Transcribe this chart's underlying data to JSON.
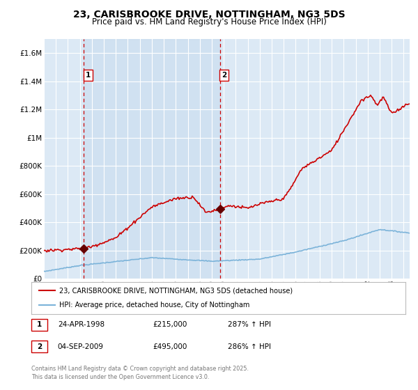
{
  "title": "23, CARISBROOKE DRIVE, NOTTINGHAM, NG3 5DS",
  "subtitle": "Price paid vs. HM Land Registry's House Price Index (HPI)",
  "title_fontsize": 10,
  "subtitle_fontsize": 8.5,
  "bg_color": "#ffffff",
  "plot_bg_color": "#dce9f5",
  "grid_color": "#ffffff",
  "red_line_color": "#cc0000",
  "blue_line_color": "#7bb3d9",
  "marker_color": "#660000",
  "vline_color": "#cc0000",
  "purchase1_year": 1998.31,
  "purchase1_price": 215000,
  "purchase2_year": 2009.67,
  "purchase2_price": 495000,
  "legend_entry1": "23, CARISBROOKE DRIVE, NOTTINGHAM, NG3 5DS (detached house)",
  "legend_entry2": "HPI: Average price, detached house, City of Nottingham",
  "table_row1": [
    "1",
    "24-APR-1998",
    "£215,000",
    "287% ↑ HPI"
  ],
  "table_row2": [
    "2",
    "04-SEP-2009",
    "£495,000",
    "286% ↑ HPI"
  ],
  "footer": "Contains HM Land Registry data © Crown copyright and database right 2025.\nThis data is licensed under the Open Government Licence v3.0.",
  "ylim": [
    0,
    1700000
  ],
  "xmin": 1995,
  "xmax": 2025.5,
  "yticks": [
    0,
    200000,
    400000,
    600000,
    800000,
    1000000,
    1200000,
    1400000,
    1600000
  ]
}
